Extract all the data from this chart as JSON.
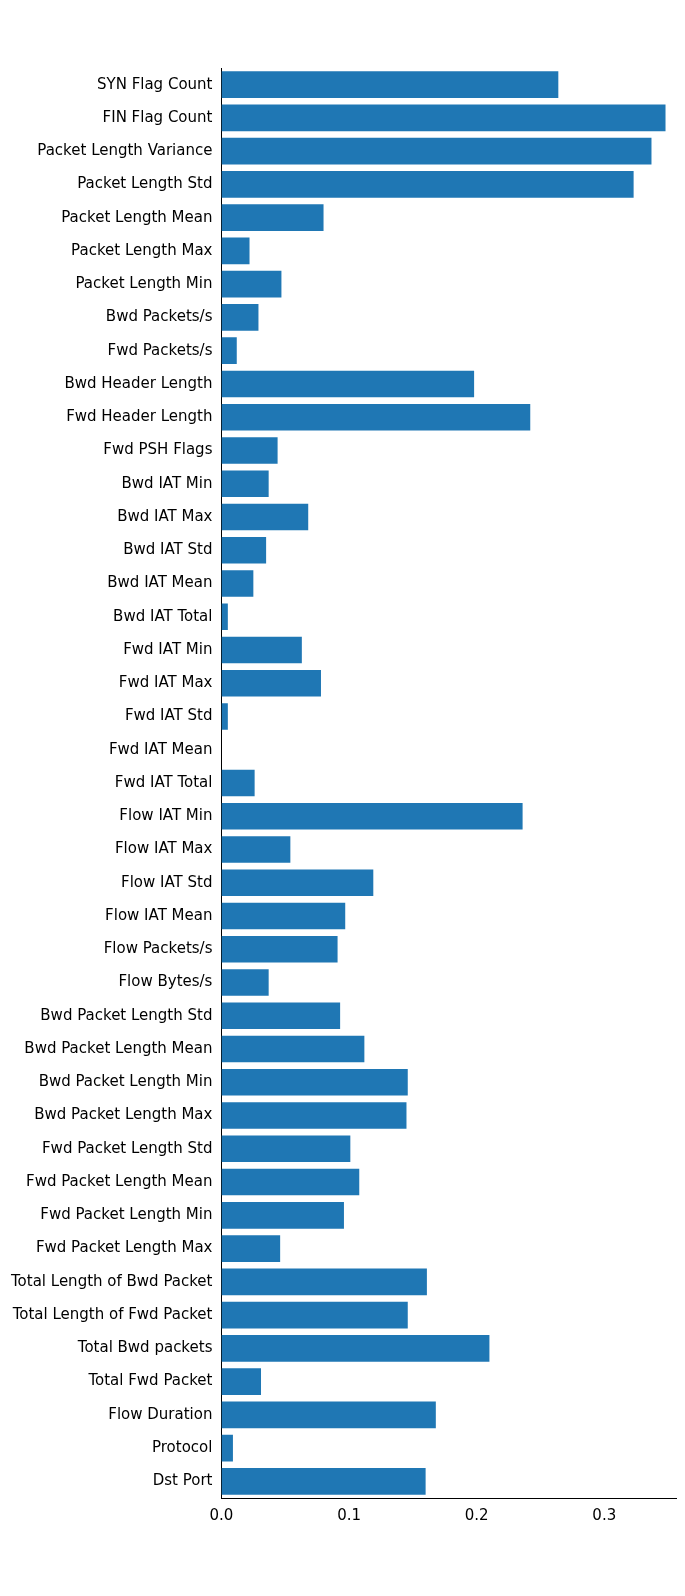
{
  "chart_data": {
    "type": "bar",
    "orientation": "horizontal",
    "categories": [
      "SYN Flag Count",
      "FIN Flag Count",
      "Packet Length Variance",
      "Packet Length Std",
      "Packet Length Mean",
      "Packet Length Max",
      "Packet Length Min",
      "Bwd Packets/s",
      "Fwd Packets/s",
      "Bwd Header Length",
      "Fwd Header Length",
      "Fwd PSH Flags",
      "Bwd IAT Min",
      "Bwd IAT Max",
      "Bwd IAT Std",
      "Bwd IAT Mean",
      "Bwd IAT Total",
      "Fwd IAT Min",
      "Fwd IAT Max",
      "Fwd IAT Std",
      "Fwd IAT Mean",
      "Fwd IAT Total",
      "Flow IAT Min",
      "Flow IAT Max",
      "Flow IAT Std",
      "Flow IAT Mean",
      "Flow Packets/s",
      "Flow Bytes/s",
      "Bwd Packet Length Std",
      "Bwd Packet Length Mean",
      "Bwd Packet Length Min",
      "Bwd Packet Length Max",
      "Fwd Packet Length Std",
      "Fwd Packet Length Mean",
      "Fwd Packet Length Min",
      "Fwd Packet Length Max",
      "Total Length of Bwd Packet",
      "Total Length of Fwd Packet",
      "Total Bwd packets",
      "Total Fwd Packet",
      "Flow Duration",
      "Protocol",
      "Dst Port"
    ],
    "values": [
      0.264,
      0.348,
      0.337,
      0.323,
      0.08,
      0.022,
      0.047,
      0.029,
      0.012,
      0.198,
      0.242,
      0.044,
      0.037,
      0.068,
      0.035,
      0.025,
      0.005,
      0.063,
      0.078,
      0.005,
      0,
      0.026,
      0.236,
      0.054,
      0.119,
      0.097,
      0.091,
      0.037,
      0.093,
      0.112,
      0.146,
      0.145,
      0.101,
      0.108,
      0.096,
      0.046,
      0.161,
      0.146,
      0.21,
      0.031,
      0.168,
      0.009,
      0.16
    ],
    "color": "#1f77b4",
    "xlim": [
      0,
      0.357
    ],
    "xticks": [
      {
        "value": 0,
        "label": "0.0"
      },
      {
        "value": 0.1,
        "label": "0.1"
      },
      {
        "value": 0.2,
        "label": "0.2"
      },
      {
        "value": 0.3,
        "label": "0.3"
      }
    ],
    "grid": false
  }
}
